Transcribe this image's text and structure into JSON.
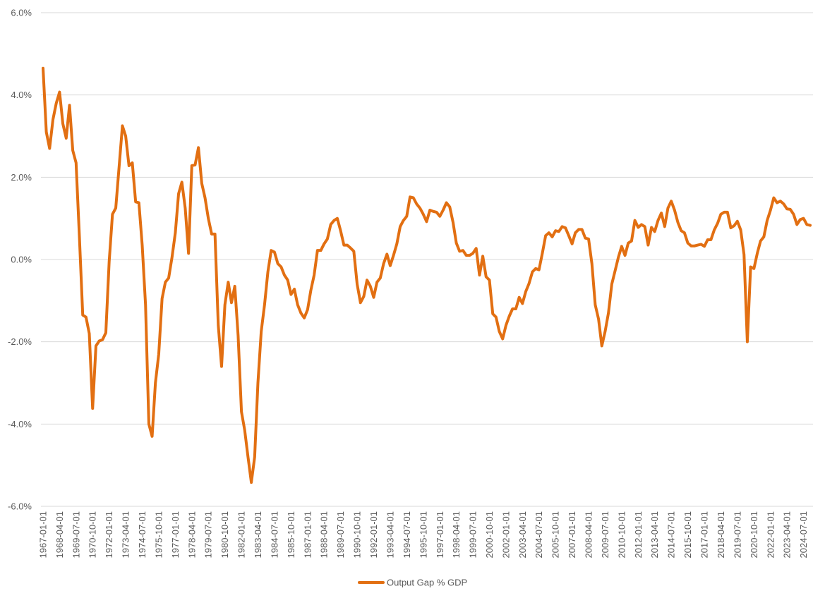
{
  "chart_data": {
    "type": "line",
    "title": "",
    "xlabel": "",
    "ylabel": "",
    "ylim": [
      -6,
      6
    ],
    "y_ticks": [
      "6.0%",
      "4.0%",
      "2.0%",
      "0.0%",
      "-2.0%",
      "-4.0%",
      "-6.0%"
    ],
    "grid": "horizontal",
    "legend_position": "bottom",
    "x_tick_labels": [
      "1967-01-01",
      "1968-04-01",
      "1969-07-01",
      "1970-10-01",
      "1972-01-01",
      "1973-04-01",
      "1974-07-01",
      "1975-10-01",
      "1977-01-01",
      "1978-04-01",
      "1979-07-01",
      "1980-10-01",
      "1982-01-01",
      "1983-04-01",
      "1984-07-01",
      "1985-10-01",
      "1987-01-01",
      "1988-04-01",
      "1989-07-01",
      "1990-10-01",
      "1992-01-01",
      "1993-04-01",
      "1994-07-01",
      "1995-10-01",
      "1997-01-01",
      "1998-04-01",
      "1999-07-01",
      "2000-10-01",
      "2002-01-01",
      "2003-04-01",
      "2004-07-01",
      "2005-10-01",
      "2007-01-01",
      "2008-04-01",
      "2009-07-01",
      "2010-10-01",
      "2012-01-01",
      "2013-04-01",
      "2014-07-01",
      "2015-10-01",
      "2017-01-01",
      "2018-04-01",
      "2019-07-01",
      "2020-10-01",
      "2022-01-01",
      "2023-04-01",
      "2024-07-01"
    ],
    "x_start": "1967-01-01",
    "x_end": "2025-01-01",
    "series": [
      {
        "name": "Output Gap % GDP",
        "color": "#E26F12",
        "points": [
          [
            "1967-01-01",
            4.65
          ],
          [
            "1967-04-01",
            3.1
          ],
          [
            "1967-07-01",
            2.7
          ],
          [
            "1967-10-01",
            3.4
          ],
          [
            "1968-01-01",
            3.8
          ],
          [
            "1968-04-01",
            4.07
          ],
          [
            "1968-07-01",
            3.3
          ],
          [
            "1968-10-01",
            2.95
          ],
          [
            "1969-01-01",
            3.75
          ],
          [
            "1969-04-01",
            2.65
          ],
          [
            "1969-07-01",
            2.35
          ],
          [
            "1969-10-01",
            0.55
          ],
          [
            "1970-01-01",
            -1.35
          ],
          [
            "1970-04-01",
            -1.4
          ],
          [
            "1970-07-01",
            -1.8
          ],
          [
            "1970-10-01",
            -3.62
          ],
          [
            "1971-01-01",
            -2.1
          ],
          [
            "1971-04-01",
            -1.98
          ],
          [
            "1971-07-01",
            -1.95
          ],
          [
            "1971-10-01",
            -1.78
          ],
          [
            "1972-01-01",
            -0.05
          ],
          [
            "1972-04-01",
            1.1
          ],
          [
            "1972-07-01",
            1.25
          ],
          [
            "1972-10-01",
            2.25
          ],
          [
            "1973-01-01",
            3.25
          ],
          [
            "1973-04-01",
            3.0
          ],
          [
            "1973-07-01",
            2.28
          ],
          [
            "1973-10-01",
            2.35
          ],
          [
            "1974-01-01",
            1.4
          ],
          [
            "1974-04-01",
            1.38
          ],
          [
            "1974-07-01",
            0.35
          ],
          [
            "1974-10-01",
            -1.1
          ],
          [
            "1975-01-01",
            -4.0
          ],
          [
            "1975-04-01",
            -4.3
          ],
          [
            "1975-07-01",
            -3.0
          ],
          [
            "1975-10-01",
            -2.3
          ],
          [
            "1976-01-01",
            -0.95
          ],
          [
            "1976-04-01",
            -0.55
          ],
          [
            "1976-07-01",
            -0.45
          ],
          [
            "1976-10-01",
            0.05
          ],
          [
            "1977-01-01",
            0.65
          ],
          [
            "1977-04-01",
            1.6
          ],
          [
            "1977-07-01",
            1.88
          ],
          [
            "1977-10-01",
            1.25
          ],
          [
            "1978-01-01",
            0.15
          ],
          [
            "1978-04-01",
            2.28
          ],
          [
            "1978-07-01",
            2.3
          ],
          [
            "1978-10-01",
            2.72
          ],
          [
            "1979-01-01",
            1.85
          ],
          [
            "1979-04-01",
            1.5
          ],
          [
            "1979-07-01",
            1.0
          ],
          [
            "1979-10-01",
            0.62
          ],
          [
            "1980-01-01",
            0.62
          ],
          [
            "1980-04-01",
            -1.6
          ],
          [
            "1980-07-01",
            -2.6
          ],
          [
            "1980-10-01",
            -1.1
          ],
          [
            "1981-01-01",
            -0.55
          ],
          [
            "1981-04-01",
            -1.05
          ],
          [
            "1981-07-01",
            -0.65
          ],
          [
            "1981-10-01",
            -1.85
          ],
          [
            "1982-01-01",
            -3.7
          ],
          [
            "1982-04-01",
            -4.15
          ],
          [
            "1982-07-01",
            -4.8
          ],
          [
            "1982-10-01",
            -5.42
          ],
          [
            "1983-01-01",
            -4.8
          ],
          [
            "1983-04-01",
            -3.0
          ],
          [
            "1983-07-01",
            -1.75
          ],
          [
            "1983-10-01",
            -1.1
          ],
          [
            "1984-01-01",
            -0.3
          ],
          [
            "1984-04-01",
            0.22
          ],
          [
            "1984-07-01",
            0.18
          ],
          [
            "1984-10-01",
            -0.1
          ],
          [
            "1985-01-01",
            -0.18
          ],
          [
            "1985-04-01",
            -0.38
          ],
          [
            "1985-07-01",
            -0.5
          ],
          [
            "1985-10-01",
            -0.85
          ],
          [
            "1986-01-01",
            -0.72
          ],
          [
            "1986-04-01",
            -1.1
          ],
          [
            "1986-07-01",
            -1.3
          ],
          [
            "1986-10-01",
            -1.42
          ],
          [
            "1987-01-01",
            -1.22
          ],
          [
            "1987-04-01",
            -0.75
          ],
          [
            "1987-07-01",
            -0.38
          ],
          [
            "1987-10-01",
            0.22
          ],
          [
            "1988-01-01",
            0.22
          ],
          [
            "1988-04-01",
            0.38
          ],
          [
            "1988-07-01",
            0.5
          ],
          [
            "1988-10-01",
            0.85
          ],
          [
            "1989-01-01",
            0.95
          ],
          [
            "1989-04-01",
            1.0
          ],
          [
            "1989-07-01",
            0.7
          ],
          [
            "1989-10-01",
            0.35
          ],
          [
            "1990-01-01",
            0.35
          ],
          [
            "1990-04-01",
            0.28
          ],
          [
            "1990-07-01",
            0.2
          ],
          [
            "1990-10-01",
            -0.6
          ],
          [
            "1991-01-01",
            -1.05
          ],
          [
            "1991-04-01",
            -0.9
          ],
          [
            "1991-07-01",
            -0.5
          ],
          [
            "1991-10-01",
            -0.65
          ],
          [
            "1992-01-01",
            -0.92
          ],
          [
            "1992-04-01",
            -0.55
          ],
          [
            "1992-07-01",
            -0.45
          ],
          [
            "1992-10-01",
            -0.1
          ],
          [
            "1993-01-01",
            0.13
          ],
          [
            "1993-04-01",
            -0.15
          ],
          [
            "1993-07-01",
            0.1
          ],
          [
            "1993-10-01",
            0.38
          ],
          [
            "1994-01-01",
            0.8
          ],
          [
            "1994-04-01",
            0.95
          ],
          [
            "1994-07-01",
            1.05
          ],
          [
            "1994-10-01",
            1.52
          ],
          [
            "1995-01-01",
            1.5
          ],
          [
            "1995-04-01",
            1.35
          ],
          [
            "1995-07-01",
            1.25
          ],
          [
            "1995-10-01",
            1.1
          ],
          [
            "1996-01-01",
            0.92
          ],
          [
            "1996-04-01",
            1.2
          ],
          [
            "1996-07-01",
            1.17
          ],
          [
            "1996-10-01",
            1.15
          ],
          [
            "1997-01-01",
            1.05
          ],
          [
            "1997-04-01",
            1.2
          ],
          [
            "1997-07-01",
            1.38
          ],
          [
            "1997-10-01",
            1.28
          ],
          [
            "1998-01-01",
            0.9
          ],
          [
            "1998-04-01",
            0.4
          ],
          [
            "1998-07-01",
            0.2
          ],
          [
            "1998-10-01",
            0.22
          ],
          [
            "1999-01-01",
            0.1
          ],
          [
            "1999-04-01",
            0.1
          ],
          [
            "1999-07-01",
            0.15
          ],
          [
            "1999-10-01",
            0.27
          ],
          [
            "2000-01-01",
            -0.38
          ],
          [
            "2000-04-01",
            0.08
          ],
          [
            "2000-07-01",
            -0.42
          ],
          [
            "2000-10-01",
            -0.5
          ],
          [
            "2001-01-01",
            -1.32
          ],
          [
            "2001-04-01",
            -1.4
          ],
          [
            "2001-07-01",
            -1.75
          ],
          [
            "2001-10-01",
            -1.93
          ],
          [
            "2002-01-01",
            -1.6
          ],
          [
            "2002-04-01",
            -1.38
          ],
          [
            "2002-07-01",
            -1.2
          ],
          [
            "2002-10-01",
            -1.2
          ],
          [
            "2003-01-01",
            -0.92
          ],
          [
            "2003-04-01",
            -1.07
          ],
          [
            "2003-07-01",
            -0.78
          ],
          [
            "2003-10-01",
            -0.58
          ],
          [
            "2004-01-01",
            -0.3
          ],
          [
            "2004-04-01",
            -0.22
          ],
          [
            "2004-07-01",
            -0.25
          ],
          [
            "2004-10-01",
            0.15
          ],
          [
            "2005-01-01",
            0.58
          ],
          [
            "2005-04-01",
            0.65
          ],
          [
            "2005-07-01",
            0.55
          ],
          [
            "2005-10-01",
            0.7
          ],
          [
            "2006-01-01",
            0.68
          ],
          [
            "2006-04-01",
            0.8
          ],
          [
            "2006-07-01",
            0.77
          ],
          [
            "2006-10-01",
            0.58
          ],
          [
            "2007-01-01",
            0.38
          ],
          [
            "2007-04-01",
            0.65
          ],
          [
            "2007-07-01",
            0.73
          ],
          [
            "2007-10-01",
            0.73
          ],
          [
            "2008-01-01",
            0.52
          ],
          [
            "2008-04-01",
            0.5
          ],
          [
            "2008-07-01",
            -0.1
          ],
          [
            "2008-10-01",
            -1.1
          ],
          [
            "2009-01-01",
            -1.45
          ],
          [
            "2009-04-01",
            -2.1
          ],
          [
            "2009-07-01",
            -1.75
          ],
          [
            "2009-10-01",
            -1.3
          ],
          [
            "2010-01-01",
            -0.6
          ],
          [
            "2010-04-01",
            -0.28
          ],
          [
            "2010-07-01",
            0.05
          ],
          [
            "2010-10-01",
            0.32
          ],
          [
            "2011-01-01",
            0.1
          ],
          [
            "2011-04-01",
            0.4
          ],
          [
            "2011-07-01",
            0.45
          ],
          [
            "2011-10-01",
            0.95
          ],
          [
            "2012-01-01",
            0.78
          ],
          [
            "2012-04-01",
            0.85
          ],
          [
            "2012-07-01",
            0.8
          ],
          [
            "2012-10-01",
            0.35
          ],
          [
            "2013-01-01",
            0.78
          ],
          [
            "2013-04-01",
            0.68
          ],
          [
            "2013-07-01",
            0.95
          ],
          [
            "2013-10-01",
            1.13
          ],
          [
            "2014-01-01",
            0.8
          ],
          [
            "2014-04-01",
            1.25
          ],
          [
            "2014-07-01",
            1.42
          ],
          [
            "2014-10-01",
            1.2
          ],
          [
            "2015-01-01",
            0.9
          ],
          [
            "2015-04-01",
            0.7
          ],
          [
            "2015-07-01",
            0.65
          ],
          [
            "2015-10-01",
            0.4
          ],
          [
            "2016-01-01",
            0.33
          ],
          [
            "2016-04-01",
            0.33
          ],
          [
            "2016-07-01",
            0.35
          ],
          [
            "2016-10-01",
            0.37
          ],
          [
            "2017-01-01",
            0.32
          ],
          [
            "2017-04-01",
            0.48
          ],
          [
            "2017-07-01",
            0.48
          ],
          [
            "2017-10-01",
            0.72
          ],
          [
            "2018-01-01",
            0.88
          ],
          [
            "2018-04-01",
            1.1
          ],
          [
            "2018-07-01",
            1.15
          ],
          [
            "2018-10-01",
            1.15
          ],
          [
            "2019-01-01",
            0.77
          ],
          [
            "2019-04-01",
            0.82
          ],
          [
            "2019-07-01",
            0.93
          ],
          [
            "2019-10-01",
            0.72
          ],
          [
            "2020-01-01",
            0.12
          ],
          [
            "2020-04-01",
            -2.0
          ],
          [
            "2020-07-01",
            -0.18
          ],
          [
            "2020-10-01",
            -0.22
          ],
          [
            "2021-01-01",
            0.15
          ],
          [
            "2021-04-01",
            0.45
          ],
          [
            "2021-07-01",
            0.55
          ],
          [
            "2021-10-01",
            0.95
          ],
          [
            "2022-01-01",
            1.2
          ],
          [
            "2022-04-01",
            1.5
          ],
          [
            "2022-07-01",
            1.38
          ],
          [
            "2022-10-01",
            1.42
          ],
          [
            "2023-01-01",
            1.35
          ],
          [
            "2023-04-01",
            1.23
          ],
          [
            "2023-07-01",
            1.22
          ],
          [
            "2023-10-01",
            1.1
          ],
          [
            "2024-01-01",
            0.85
          ],
          [
            "2024-04-01",
            0.97
          ],
          [
            "2024-07-01",
            1.0
          ],
          [
            "2024-10-01",
            0.85
          ],
          [
            "2025-01-01",
            0.83
          ]
        ]
      }
    ]
  }
}
